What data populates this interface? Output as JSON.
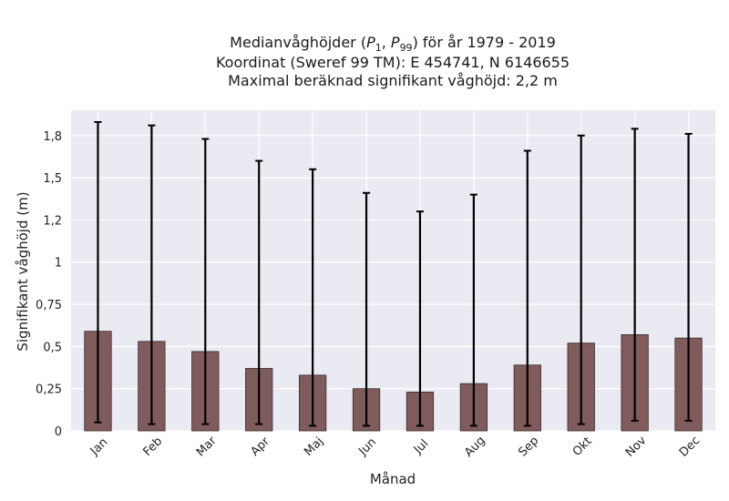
{
  "chart_data": {
    "type": "bar",
    "title_lines": [
      "Medianvåghöjder (P1, P99) för år 1979 - 2019",
      "Koordinat (Sweref 99 TM): E 454741, N 6146655",
      "Maximal beräknad signifikant våghöjd: 2,2 m"
    ],
    "xlabel": "Månad",
    "ylabel": "Signifikant våghöjd (m)",
    "categories": [
      "Jan",
      "Feb",
      "Mar",
      "Apr",
      "Maj",
      "Jun",
      "Jul",
      "Aug",
      "Sep",
      "Okt",
      "Nov",
      "Dec"
    ],
    "values": [
      0.59,
      0.53,
      0.47,
      0.37,
      0.33,
      0.25,
      0.23,
      0.28,
      0.39,
      0.52,
      0.57,
      0.55
    ],
    "error_low": [
      0.05,
      0.04,
      0.04,
      0.04,
      0.03,
      0.03,
      0.03,
      0.03,
      0.03,
      0.04,
      0.06,
      0.06
    ],
    "error_high": [
      1.83,
      1.81,
      1.73,
      1.6,
      1.55,
      1.41,
      1.3,
      1.4,
      1.66,
      1.75,
      1.79,
      1.76
    ],
    "ylim": [
      0,
      1.9
    ],
    "yticks": [
      0,
      0.25,
      0.5,
      0.75,
      1,
      1.25,
      1.5,
      1.75
    ],
    "ytick_labels": [
      "0",
      "0,25",
      "0,5",
      "0,75",
      "1",
      "1,2",
      "1,5",
      "1,8"
    ],
    "grid": true,
    "colors": {
      "background": "#eaeaf2",
      "bar": "#7f5b5b",
      "bar_edge": "#3a2a2a",
      "error_bar": "#000000",
      "grid": "#ffffff"
    }
  }
}
